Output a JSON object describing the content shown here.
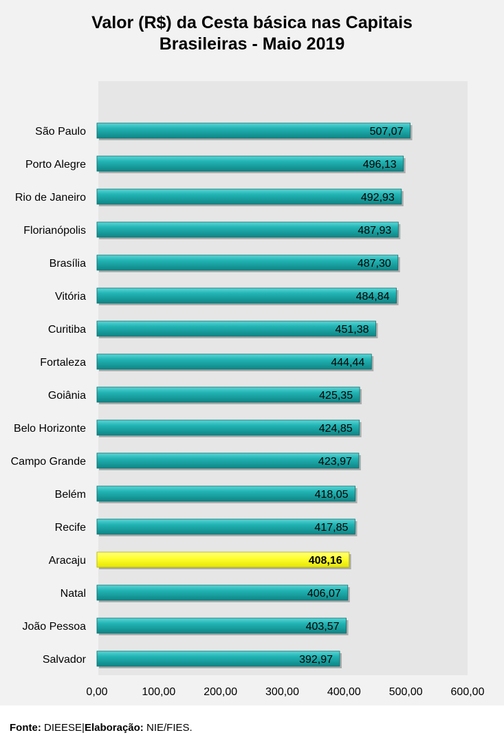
{
  "chart_data": {
    "type": "bar",
    "orientation": "horizontal",
    "title": [
      "Valor (R$) da Cesta básica nas Capitais",
      "Brasileiras - Maio 2019"
    ],
    "categories": [
      "São Paulo",
      "Porto Alegre",
      "Rio de Janeiro",
      "Florianópolis",
      "Brasília",
      "Vitória",
      "Curitiba",
      "Fortaleza",
      "Goiânia",
      "Belo Horizonte",
      "Campo Grande",
      "Belém",
      "Recife",
      "Aracaju",
      "Natal",
      "João Pessoa",
      "Salvador"
    ],
    "values": [
      507.07,
      496.13,
      492.93,
      487.93,
      487.3,
      484.84,
      451.38,
      444.44,
      425.35,
      424.85,
      423.97,
      418.05,
      417.85,
      408.16,
      406.07,
      403.57,
      392.97
    ],
    "value_labels": [
      "507,07",
      "496,13",
      "492,93",
      "487,93",
      "487,30",
      "484,84",
      "451,38",
      "444,44",
      "425,35",
      "424,85",
      "423,97",
      "418,05",
      "417,85",
      "408,16",
      "406,07",
      "403,57",
      "392,97"
    ],
    "highlight": "Aracaju",
    "xlim": [
      0,
      600
    ],
    "x_ticks": [
      "0,00",
      "100,00",
      "200,00",
      "300,00",
      "400,00",
      "500,00",
      "600,00"
    ],
    "grid": false,
    "legend": "none",
    "colors": {
      "bar": "#1fb0b0",
      "bar_dark": "#0e7b7b",
      "highlight": "#ffff33",
      "plot_area": "#e6e6e6",
      "frame": "#f2f2f2"
    }
  },
  "footer": {
    "source_label": "Fonte:",
    "source_value": "DIEESE",
    "separator": "|",
    "credit_label": "Elaboração:",
    "credit_value": "NIE/FIES."
  }
}
